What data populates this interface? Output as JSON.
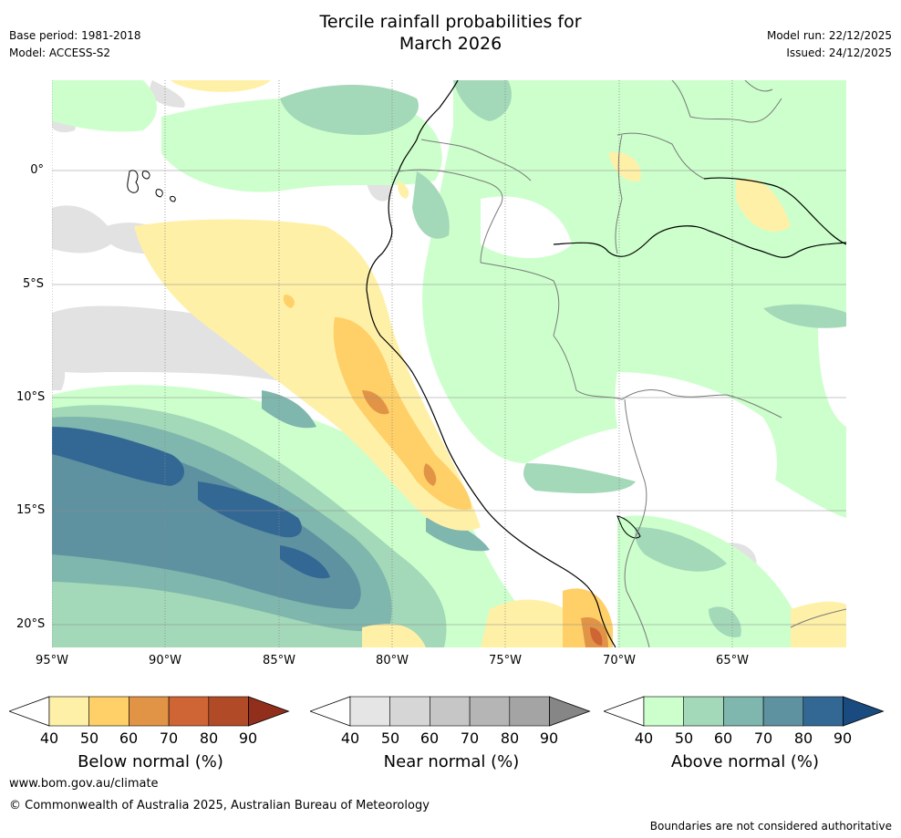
{
  "header": {
    "title_line1": "Tercile rainfall probabilities for",
    "title_line2": "March 2026",
    "base_period": "Base period: 1981-2018",
    "model": "Model: ACCESS-S2",
    "model_run": "Model run: 22/12/2025",
    "issued": "Issued: 24/12/2025"
  },
  "map": {
    "lat_labels": [
      "0°",
      "5°S",
      "10°S",
      "15°S",
      "20°S"
    ],
    "lon_labels": [
      "95°W",
      "90°W",
      "85°W",
      "80°W",
      "75°W",
      "70°W",
      "65°W"
    ]
  },
  "colorbars": [
    {
      "title": "Below normal (%)",
      "ticks": [
        "40",
        "50",
        "60",
        "70",
        "80",
        "90"
      ],
      "colors": [
        "#fff0a8",
        "#ffcf68",
        "#e29446",
        "#cf6535",
        "#b04a27",
        "#922f1c"
      ]
    },
    {
      "title": "Near normal (%)",
      "ticks": [
        "40",
        "50",
        "60",
        "70",
        "80",
        "90"
      ],
      "colors": [
        "#e5e5e5",
        "#d6d6d6",
        "#c6c6c6",
        "#b5b5b5",
        "#a4a4a4",
        "#868686"
      ]
    },
    {
      "title": "Above normal (%)",
      "ticks": [
        "40",
        "50",
        "60",
        "70",
        "80",
        "90"
      ],
      "colors": [
        "#ccffcc",
        "#a3d8b8",
        "#7fb6ad",
        "#5e92a0",
        "#346894",
        "#1a4b80"
      ]
    }
  ],
  "footer": {
    "url": "www.bom.gov.au/climate",
    "copyright": "© Commonwealth of Australia 2025, Australian Bureau of Meteorology",
    "disclaimer": "Boundaries are not considered authoritative"
  }
}
